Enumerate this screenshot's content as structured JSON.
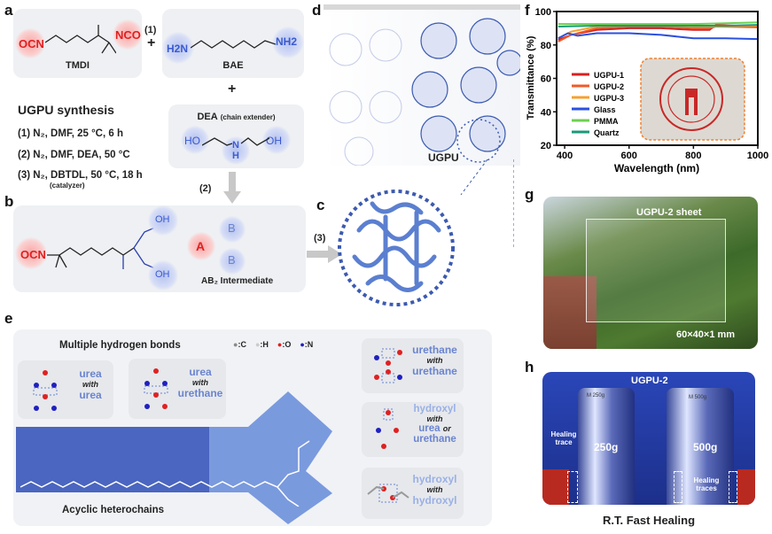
{
  "panel_labels": {
    "a": "a",
    "b": "b",
    "c": "c",
    "d": "d",
    "e": "e",
    "f": "f",
    "g": "g",
    "h": "h"
  },
  "panel_a": {
    "tmdi": {
      "name": "TMDI",
      "left_group": "OCN",
      "right_group": "NCO"
    },
    "bae": {
      "name": "BAE",
      "left_group": "H2N",
      "right_group": "NH2",
      "o": "O"
    },
    "step1": "(1)",
    "plus": "+",
    "dea": {
      "name": "DEA",
      "note": "(chain extender)",
      "left": "HO",
      "right": "OH",
      "n": "N",
      "h": "H"
    },
    "synthesis_title": "UGPU synthesis",
    "steps": [
      "(1) N₂, DMF, 25 °C, 6 h",
      "(2) N₂, DMF, DEA, 50 °C",
      "(3) N₂, DBTDL, 50 °C, 18 h"
    ],
    "catalyzer": "(catalyzer)",
    "step2": "(2)"
  },
  "panel_b": {
    "ocn": "OCN",
    "oh_top": "OH",
    "oh_bottom": "OH",
    "a": "A",
    "b": "B",
    "intermediate": "AB₂ Intermediate",
    "step3": "(3)"
  },
  "panel_d": {
    "label": "UGPU"
  },
  "panel_e": {
    "title": "Multiple hydrogen bonds",
    "legend": [
      {
        "atom": "C",
        "color": "#8a8a8a"
      },
      {
        "atom": "H",
        "color": "#e0e0e0"
      },
      {
        "atom": "O",
        "color": "#e02020"
      },
      {
        "atom": "N",
        "color": "#2020c0"
      }
    ],
    "pairs_left": [
      {
        "a": "urea",
        "with": "with",
        "b": "urea"
      },
      {
        "a": "urea",
        "with": "with",
        "b": "urethane"
      }
    ],
    "pairs_right": [
      {
        "a": "urethane",
        "with": "with",
        "b": "urethane"
      },
      {
        "a": "hydroxyl",
        "with": "with",
        "b": "urea",
        "or": "or",
        "c": "urethane"
      },
      {
        "a": "hydroxyl",
        "with": "with",
        "b": "hydroxyl"
      }
    ],
    "chain_label": "Acyclic heterochains"
  },
  "chart_data": {
    "type": "line",
    "xlabel": "Wavelength (nm)",
    "ylabel": "Transmittance (%)",
    "xlim": [
      375,
      1000
    ],
    "ylim": [
      20,
      100
    ],
    "xticks": [
      400,
      600,
      800,
      1000
    ],
    "yticks": [
      20,
      40,
      60,
      80,
      100
    ],
    "legend_position": "left-center",
    "grid": false,
    "series": [
      {
        "name": "UGPU-1",
        "color": "#d42020",
        "x": [
          380,
          420,
          500,
          600,
          700,
          800,
          850,
          870,
          1000
        ],
        "y": [
          83,
          86,
          89,
          90,
          90,
          89,
          89,
          92,
          91
        ]
      },
      {
        "name": "UGPU-2",
        "color": "#f05a28",
        "x": [
          380,
          420,
          500,
          600,
          700,
          800,
          850,
          870,
          1000
        ],
        "y": [
          82,
          86,
          90,
          91,
          91,
          90,
          90,
          91,
          90.5
        ]
      },
      {
        "name": "UGPU-3",
        "color": "#f5a030",
        "x": [
          380,
          420,
          500,
          600,
          700,
          800,
          850,
          1000
        ],
        "y": [
          84,
          88,
          91,
          91.5,
          91.5,
          91,
          91,
          91.5
        ]
      },
      {
        "name": "Glass",
        "color": "#2a50e0",
        "x": [
          380,
          410,
          440,
          500,
          600,
          700,
          800,
          900,
          1000
        ],
        "y": [
          84,
          87,
          85.5,
          87,
          87,
          86,
          84,
          84,
          83.5
        ]
      },
      {
        "name": "PMMA",
        "color": "#6cd050",
        "x": [
          380,
          500,
          600,
          700,
          800,
          900,
          1000
        ],
        "y": [
          92.5,
          92.5,
          92.5,
          92.5,
          92.5,
          93,
          93.5
        ]
      },
      {
        "name": "Quartz",
        "color": "#1a9a7a",
        "x": [
          380,
          500,
          600,
          700,
          800,
          900,
          1000
        ],
        "y": [
          91,
          91.5,
          91.5,
          91.5,
          91.5,
          91.5,
          92
        ]
      }
    ],
    "inset": "SICHUAN UNIVERSITY seal"
  },
  "panel_g": {
    "sheet": "UGPU-2 sheet",
    "size": "60×40×1 mm"
  },
  "panel_h": {
    "title": "UGPU-2",
    "w1": "250g",
    "w2": "500g",
    "trace1": "Healing trace",
    "trace2": "Healing traces",
    "stamp1": "M 250g",
    "stamp2": "M 500g",
    "caption": "R.T.  Fast Healing"
  }
}
